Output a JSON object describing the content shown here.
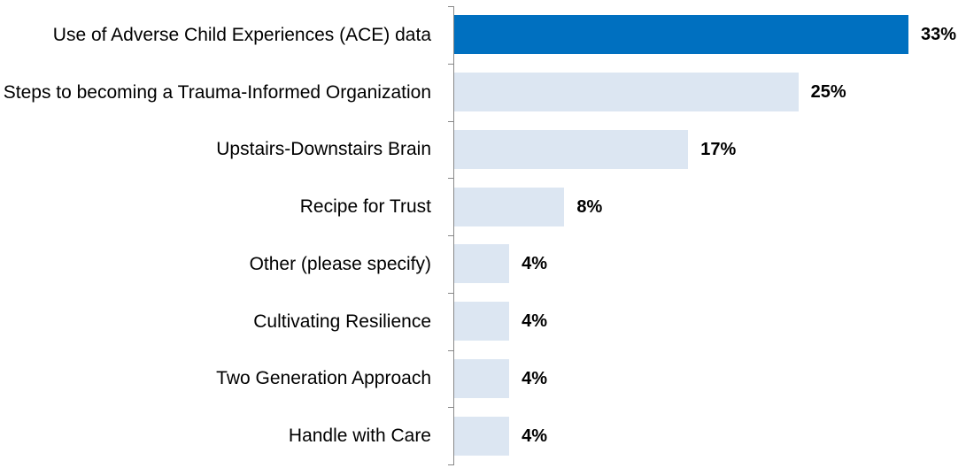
{
  "chart_data": {
    "type": "bar",
    "orientation": "horizontal",
    "categories": [
      "Use of Adverse Child Experiences (ACE) data",
      "Steps to becoming a Trauma-Informed Organization",
      "Upstairs-Downstairs Brain",
      "Recipe for Trust",
      "Other (please specify)",
      "Cultivating Resilience",
      "Two Generation Approach",
      "Handle with Care"
    ],
    "values": [
      33,
      25,
      17,
      8,
      4,
      4,
      4,
      4
    ],
    "value_labels": [
      "33%",
      "25%",
      "17%",
      "8%",
      "4%",
      "4%",
      "4%",
      "4%"
    ],
    "colors": [
      "#0070c0",
      "#dce6f2",
      "#dce6f2",
      "#dce6f2",
      "#dce6f2",
      "#dce6f2",
      "#dce6f2",
      "#dce6f2"
    ],
    "xlim": [
      0,
      33
    ]
  }
}
